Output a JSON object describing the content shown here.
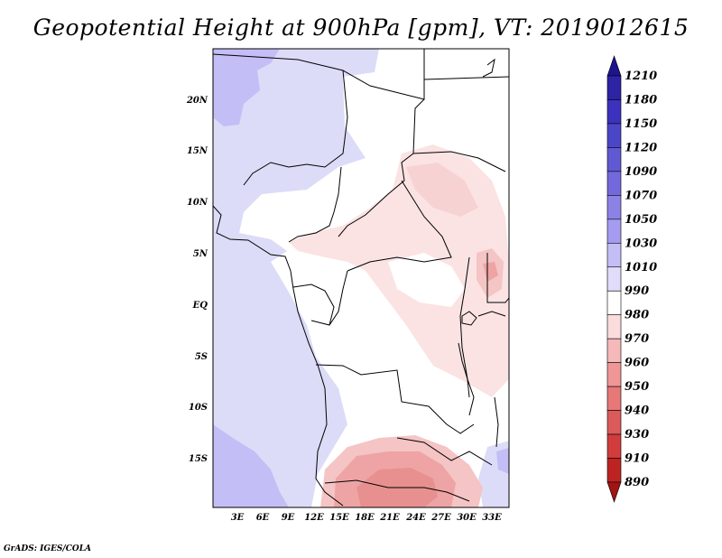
{
  "title": "Geopotential Height at 900hPa [gpm], VT: 2019012615",
  "credit": "GrADS: IGES/COLA",
  "lat_labels": [
    "20N",
    "15N",
    "10N",
    "5N",
    "EQ",
    "5S",
    "10S",
    "15S"
  ],
  "lon_labels": [
    "3E",
    "6E",
    "9E",
    "12E",
    "15E",
    "18E",
    "21E",
    "24E",
    "27E",
    "30E",
    "33E"
  ],
  "colorbar": {
    "labels": [
      "1210",
      "1180",
      "1150",
      "1120",
      "1090",
      "1070",
      "1050",
      "1030",
      "1010",
      "990",
      "980",
      "970",
      "960",
      "950",
      "940",
      "930",
      "910",
      "890"
    ],
    "colors": [
      "#1e148c",
      "#2d23a5",
      "#3c32be",
      "#4b46c8",
      "#5f5ad2",
      "#7369dc",
      "#8c82e6",
      "#a59bf0",
      "#c3bef5",
      "#e1dcfa",
      "#ffffff",
      "#fadcdc",
      "#f5b9b9",
      "#f09696",
      "#e67878",
      "#dc5a5a",
      "#d23c3c",
      "#be2323",
      "#a01414"
    ]
  }
}
